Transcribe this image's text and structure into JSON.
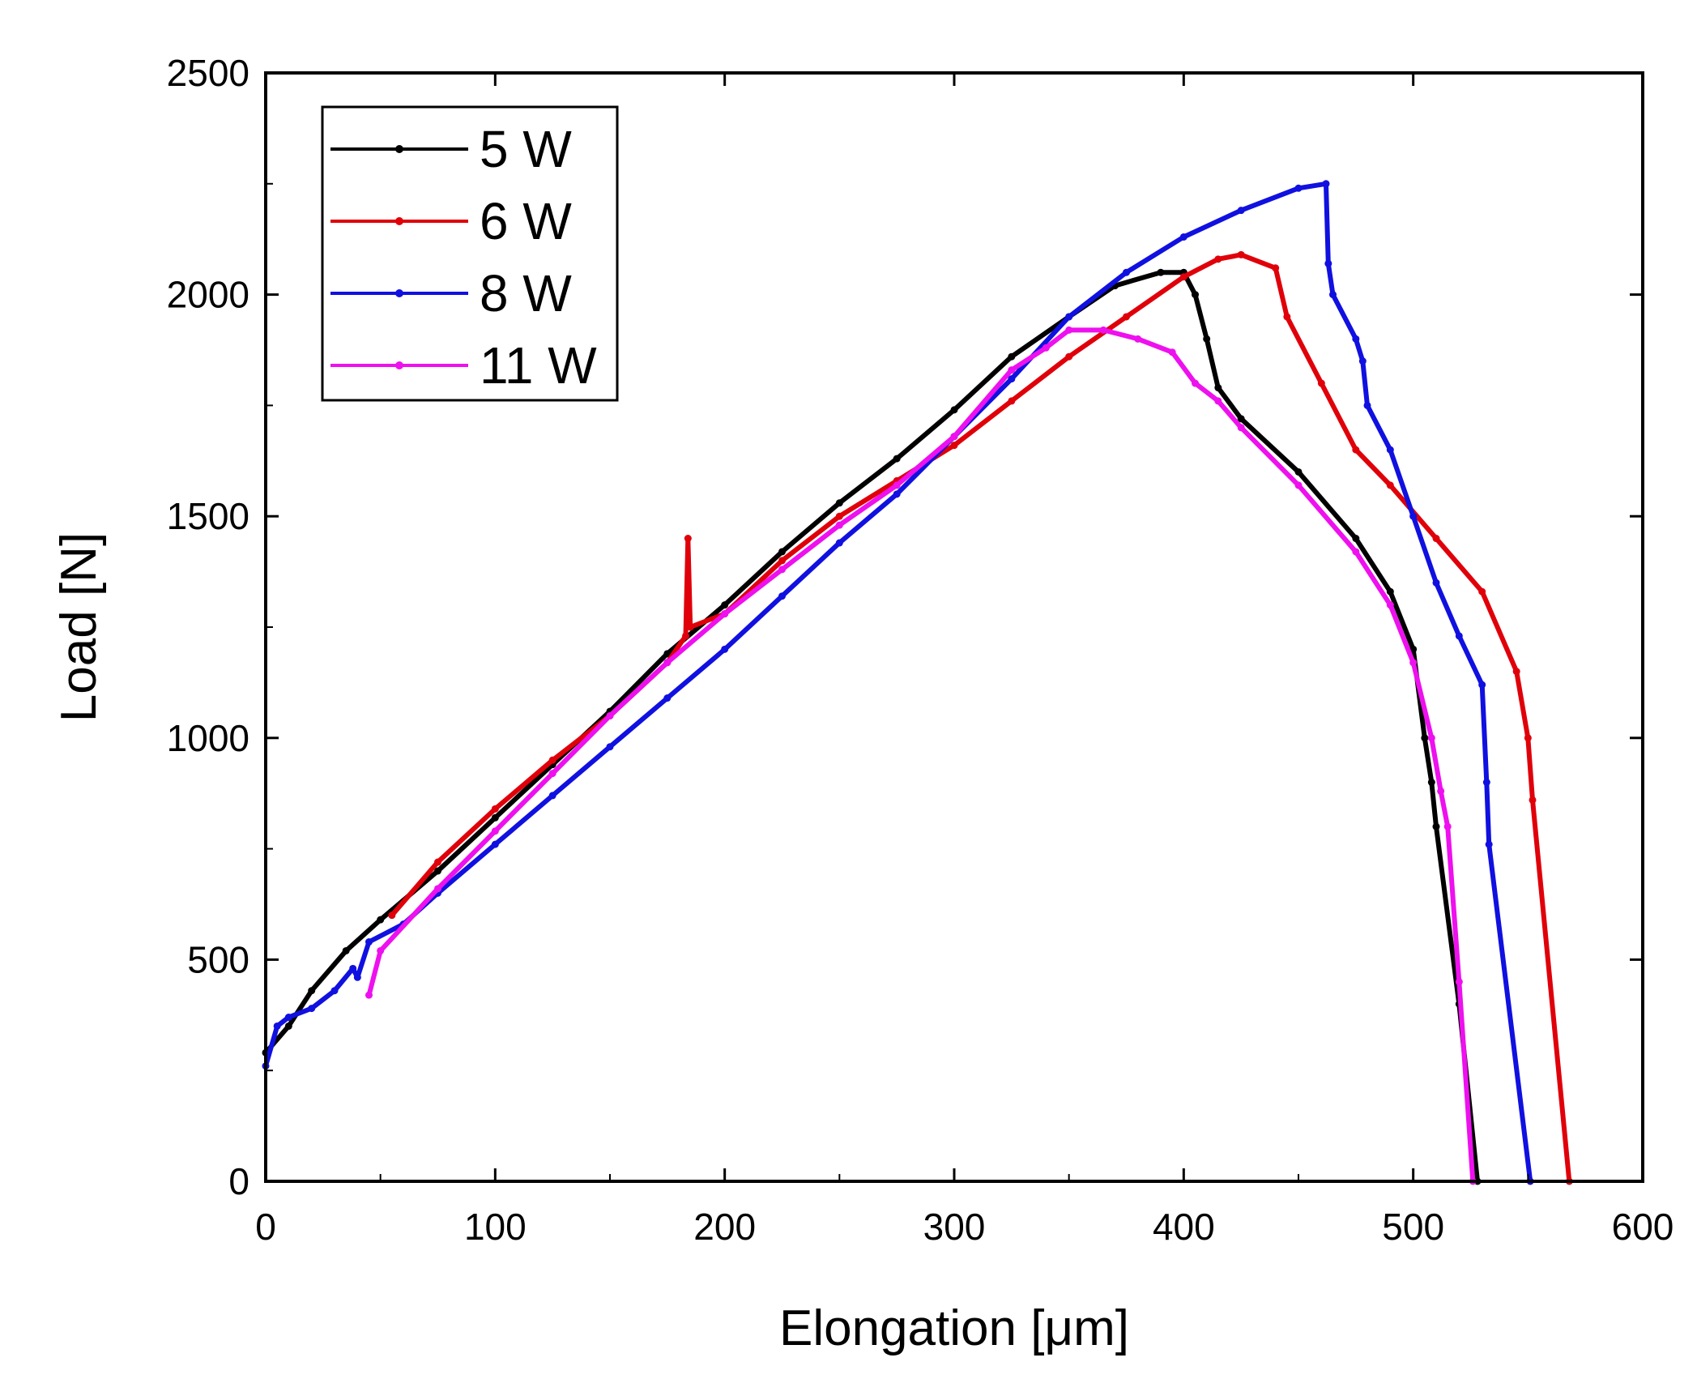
{
  "chart_data": {
    "type": "line",
    "title": "",
    "xlabel": "Elongation [μm]",
    "ylabel": "Load [N]",
    "xlim": [
      0,
      600
    ],
    "ylim": [
      0,
      2500
    ],
    "xticks": [
      0,
      100,
      200,
      300,
      400,
      500,
      600
    ],
    "yticks": [
      0,
      500,
      1000,
      1500,
      2000,
      2500
    ],
    "legend_position": "top-left",
    "series": [
      {
        "name": "5 W",
        "color": "#000000",
        "points": [
          [
            0,
            290
          ],
          [
            10,
            350
          ],
          [
            20,
            430
          ],
          [
            35,
            520
          ],
          [
            50,
            590
          ],
          [
            75,
            700
          ],
          [
            100,
            820
          ],
          [
            125,
            940
          ],
          [
            150,
            1060
          ],
          [
            175,
            1190
          ],
          [
            200,
            1300
          ],
          [
            225,
            1420
          ],
          [
            250,
            1530
          ],
          [
            275,
            1630
          ],
          [
            300,
            1740
          ],
          [
            325,
            1860
          ],
          [
            350,
            1950
          ],
          [
            370,
            2020
          ],
          [
            390,
            2050
          ],
          [
            400,
            2050
          ],
          [
            405,
            2000
          ],
          [
            410,
            1900
          ],
          [
            415,
            1790
          ],
          [
            425,
            1720
          ],
          [
            450,
            1600
          ],
          [
            475,
            1450
          ],
          [
            490,
            1330
          ],
          [
            500,
            1200
          ],
          [
            505,
            1000
          ],
          [
            508,
            900
          ],
          [
            510,
            800
          ],
          [
            520,
            400
          ],
          [
            528,
            0
          ]
        ]
      },
      {
        "name": "6 W",
        "color": "#e0000a",
        "points": [
          [
            55,
            600
          ],
          [
            75,
            720
          ],
          [
            100,
            840
          ],
          [
            125,
            950
          ],
          [
            150,
            1050
          ],
          [
            175,
            1170
          ],
          [
            183,
            1230
          ],
          [
            184,
            1450
          ],
          [
            185,
            1250
          ],
          [
            200,
            1280
          ],
          [
            225,
            1400
          ],
          [
            250,
            1500
          ],
          [
            275,
            1580
          ],
          [
            300,
            1660
          ],
          [
            325,
            1760
          ],
          [
            350,
            1860
          ],
          [
            375,
            1950
          ],
          [
            400,
            2040
          ],
          [
            415,
            2080
          ],
          [
            425,
            2090
          ],
          [
            440,
            2060
          ],
          [
            445,
            1950
          ],
          [
            460,
            1800
          ],
          [
            475,
            1650
          ],
          [
            490,
            1570
          ],
          [
            510,
            1450
          ],
          [
            530,
            1330
          ],
          [
            545,
            1150
          ],
          [
            550,
            1000
          ],
          [
            552,
            860
          ],
          [
            568,
            0
          ]
        ]
      },
      {
        "name": "8 W",
        "color": "#1010e0",
        "points": [
          [
            0,
            260
          ],
          [
            5,
            350
          ],
          [
            10,
            370
          ],
          [
            20,
            390
          ],
          [
            30,
            430
          ],
          [
            38,
            480
          ],
          [
            40,
            460
          ],
          [
            45,
            540
          ],
          [
            60,
            580
          ],
          [
            75,
            650
          ],
          [
            100,
            760
          ],
          [
            125,
            870
          ],
          [
            150,
            980
          ],
          [
            175,
            1090
          ],
          [
            200,
            1200
          ],
          [
            225,
            1320
          ],
          [
            250,
            1440
          ],
          [
            275,
            1550
          ],
          [
            300,
            1680
          ],
          [
            325,
            1810
          ],
          [
            350,
            1950
          ],
          [
            375,
            2050
          ],
          [
            400,
            2130
          ],
          [
            425,
            2190
          ],
          [
            450,
            2240
          ],
          [
            462,
            2250
          ],
          [
            463,
            2070
          ],
          [
            465,
            2000
          ],
          [
            475,
            1900
          ],
          [
            478,
            1850
          ],
          [
            480,
            1750
          ],
          [
            490,
            1650
          ],
          [
            500,
            1500
          ],
          [
            510,
            1350
          ],
          [
            520,
            1230
          ],
          [
            530,
            1120
          ],
          [
            532,
            900
          ],
          [
            533,
            760
          ],
          [
            551,
            0
          ]
        ]
      },
      {
        "name": "11 W",
        "color": "#ee10ee",
        "points": [
          [
            45,
            420
          ],
          [
            50,
            520
          ],
          [
            75,
            660
          ],
          [
            100,
            790
          ],
          [
            125,
            920
          ],
          [
            150,
            1050
          ],
          [
            175,
            1170
          ],
          [
            200,
            1280
          ],
          [
            225,
            1380
          ],
          [
            250,
            1480
          ],
          [
            275,
            1570
          ],
          [
            300,
            1680
          ],
          [
            325,
            1830
          ],
          [
            340,
            1880
          ],
          [
            350,
            1920
          ],
          [
            365,
            1920
          ],
          [
            380,
            1900
          ],
          [
            395,
            1870
          ],
          [
            405,
            1800
          ],
          [
            415,
            1760
          ],
          [
            425,
            1700
          ],
          [
            450,
            1570
          ],
          [
            475,
            1420
          ],
          [
            490,
            1300
          ],
          [
            500,
            1170
          ],
          [
            508,
            1000
          ],
          [
            512,
            880
          ],
          [
            515,
            800
          ],
          [
            520,
            450
          ],
          [
            526,
            0
          ]
        ]
      }
    ]
  }
}
